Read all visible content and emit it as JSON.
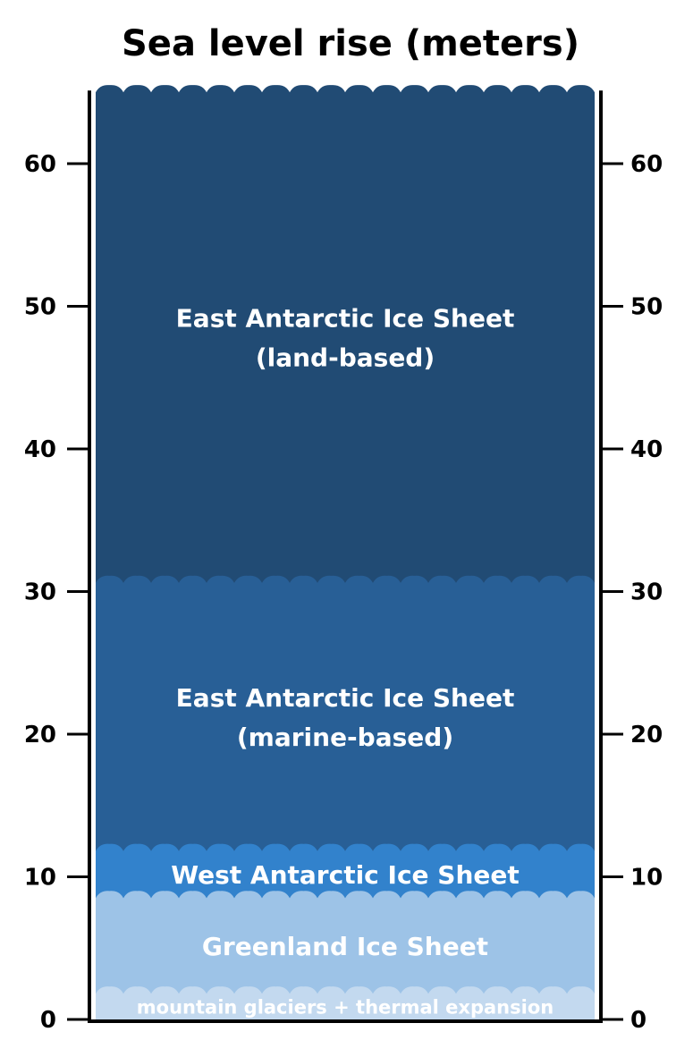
{
  "chart_data": {
    "type": "stacked-column",
    "title": "Sea level rise (meters)",
    "ylim": [
      0,
      65
    ],
    "yticks": [
      0,
      10,
      20,
      30,
      40,
      50,
      60
    ],
    "layers": [
      {
        "label": "mountain glaciers + thermal expansion",
        "value": 1.8,
        "top": 1.8,
        "color": "#c3d9ef"
      },
      {
        "label": "Greenland Ice Sheet",
        "value": 6.7,
        "top": 8.5,
        "color": "#9dc3e7"
      },
      {
        "label": "West Antarctic Ice Sheet",
        "value": 3.3,
        "top": 11.8,
        "color": "#3282cc"
      },
      {
        "label": "East Antarctic Ice Sheet\n(marine-based)",
        "value": 18.8,
        "top": 30.6,
        "color": "#285f96"
      },
      {
        "label": "East Antarctic Ice Sheet\n(land-based)",
        "value": 34.4,
        "top": 65,
        "color": "#214b74"
      }
    ],
    "axis_color": "#000000",
    "waves": true
  }
}
